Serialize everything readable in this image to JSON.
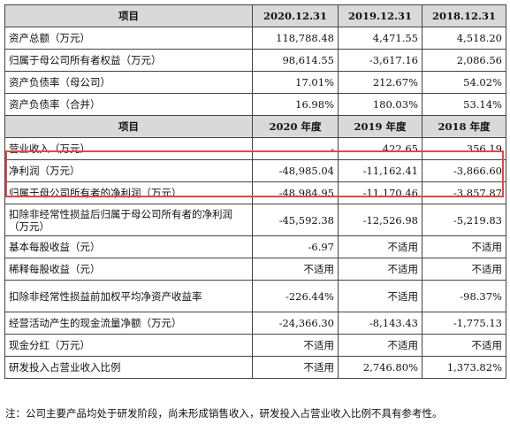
{
  "table": {
    "header1": [
      "项目",
      "2020.12.31",
      "2019.12.31",
      "2018.12.31"
    ],
    "rows1": [
      [
        "资产总额（万元）",
        "118,788.48",
        "4,471.55",
        "4,518.20"
      ],
      [
        "归属于母公司所有者权益（万元）",
        "98,614.55",
        "-3,617.16",
        "2,086.56"
      ],
      [
        "资产负债率（母公司）",
        "17.01%",
        "212.67%",
        "54.02%"
      ],
      [
        "资产负债率（合并）",
        "16.98%",
        "180.03%",
        "53.14%"
      ]
    ],
    "header2": [
      "项目",
      "2020 年度",
      "2019 年度",
      "2018 年度"
    ],
    "rows2": [
      [
        "营业收入（万元）",
        "-",
        "422.65",
        "356.19"
      ],
      [
        "净利润（万元）",
        "-48,985.04",
        "-11,162.41",
        "-3,866.60"
      ],
      [
        "归属于母公司所有者的净利润（万元）",
        "-48,984.95",
        "-11,170.46",
        "-3,857.87"
      ],
      [
        "扣除非经常性损益后归属于母公司所有者的净利润（万元）",
        "-45,592.38",
        "-12,526.98",
        "-5,219.83"
      ],
      [
        "基本每股收益（元）",
        "-6.97",
        "不适用",
        "不适用"
      ],
      [
        "稀释每股收益（元）",
        "不适用",
        "不适用",
        "不适用"
      ],
      [
        "扣除非经常性损益前加权平均净资产收益率",
        "-226.44%",
        "不适用",
        "-98.37%"
      ],
      [
        "经营活动产生的现金流量净额（万元）",
        "-24,366.30",
        "-8,143.43",
        "-1,775.13"
      ],
      [
        "现金分红（万元）",
        "不适用",
        "不适用",
        "不适用"
      ],
      [
        "研发投入占营业收入比例",
        "不适用",
        "2,746.80%",
        "1,373.82%"
      ]
    ]
  },
  "note": "注：公司主要产品均处于研发阶段，尚未形成销售收入，研发投入占营业收入比例不具有参考性。",
  "highlight_color": "#d94a4a"
}
